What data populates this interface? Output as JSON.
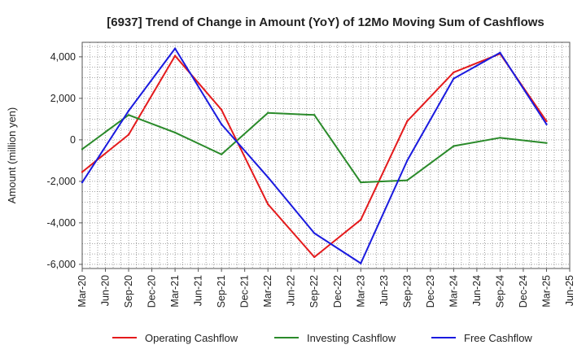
{
  "chart_data": {
    "type": "line",
    "title": "[6937]  Trend of Change in Amount (YoY) of 12Mo Moving Sum of Cashflows",
    "xlabel": "",
    "ylabel": "Amount (million yen)",
    "ylim": [
      -6200,
      4700
    ],
    "yticks": [
      4000,
      2000,
      0,
      -2000,
      -4000,
      -6000
    ],
    "ytick_labels": [
      "4,000",
      "2,000",
      "0",
      "-2,000",
      "-4,000",
      "-6,000"
    ],
    "categories": [
      "Mar-20",
      "Jun-20",
      "Sep-20",
      "Dec-20",
      "Mar-21",
      "Jun-21",
      "Sep-21",
      "Dec-21",
      "Mar-22",
      "Jun-22",
      "Sep-22",
      "Dec-22",
      "Mar-23",
      "Jun-23",
      "Sep-23",
      "Dec-23",
      "Mar-24",
      "Jun-24",
      "Sep-24",
      "Dec-24",
      "Mar-25",
      "Jun-25"
    ],
    "grid": true,
    "legend_position": "bottom",
    "series": [
      {
        "name": "Operating Cashflow",
        "color": "#e41a1c",
        "x": [
          "Mar-20",
          "Sep-20",
          "Mar-21",
          "Sep-21",
          "Mar-22",
          "Sep-22",
          "Mar-23",
          "Sep-23",
          "Mar-24",
          "Sep-24",
          "Mar-25"
        ],
        "values": [
          -1550,
          250,
          4050,
          1450,
          -3100,
          -5650,
          -3850,
          900,
          3250,
          4150,
          900
        ]
      },
      {
        "name": "Investing Cashflow",
        "color": "#2a8a2a",
        "x": [
          "Mar-20",
          "Sep-20",
          "Mar-21",
          "Sep-21",
          "Mar-22",
          "Sep-22",
          "Mar-23",
          "Sep-23",
          "Mar-24",
          "Sep-24",
          "Mar-25"
        ],
        "values": [
          -450,
          1200,
          350,
          -700,
          1300,
          1200,
          -2050,
          -1950,
          -300,
          100,
          -150
        ]
      },
      {
        "name": "Free Cashflow",
        "color": "#1a1adf",
        "x": [
          "Mar-20",
          "Sep-20",
          "Mar-21",
          "Sep-21",
          "Mar-22",
          "Sep-22",
          "Mar-23",
          "Sep-23",
          "Mar-24",
          "Sep-24",
          "Mar-25"
        ],
        "values": [
          -2050,
          1400,
          4400,
          750,
          -1800,
          -4500,
          -5950,
          -1000,
          2950,
          4200,
          750
        ]
      }
    ]
  }
}
